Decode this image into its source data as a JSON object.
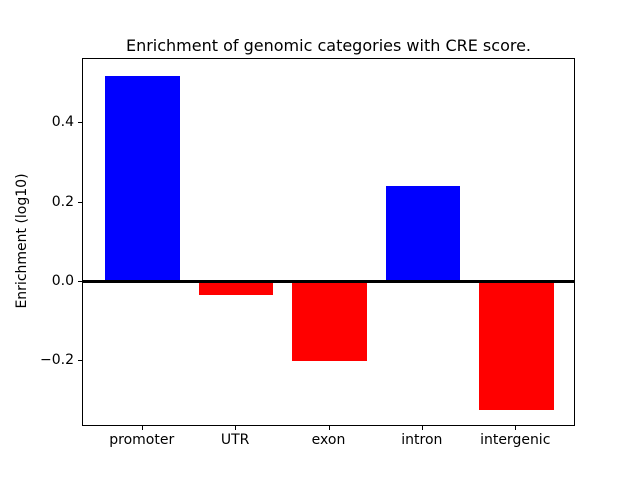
{
  "chart_data": {
    "type": "bar",
    "title": "Enrichment of genomic categories with CRE score.",
    "xlabel": "",
    "ylabel": "Enrichment (log10)",
    "categories": [
      "promoter",
      "UTR",
      "exon",
      "intron",
      "intergenic"
    ],
    "values": [
      0.52,
      -0.032,
      -0.2,
      0.242,
      -0.324
    ],
    "bar_colors": [
      "#0000ff",
      "#ff0000",
      "#ff0000",
      "#0000ff",
      "#ff0000"
    ],
    "positive_color": "#0000ff",
    "negative_color": "#ff0000",
    "bar_width": 0.8,
    "xlim": [
      -0.64,
      4.64
    ],
    "ylim": [
      -0.366,
      0.562
    ],
    "ytick_values": [
      0.4,
      0.2,
      0.0,
      -0.2
    ],
    "ytick_labels": [
      "0.4",
      "0.2",
      "0.0",
      "−0.2"
    ],
    "zero_line": true,
    "grid": false,
    "legend": null,
    "background_color": "#ffffff",
    "axis_color": "#000000"
  }
}
